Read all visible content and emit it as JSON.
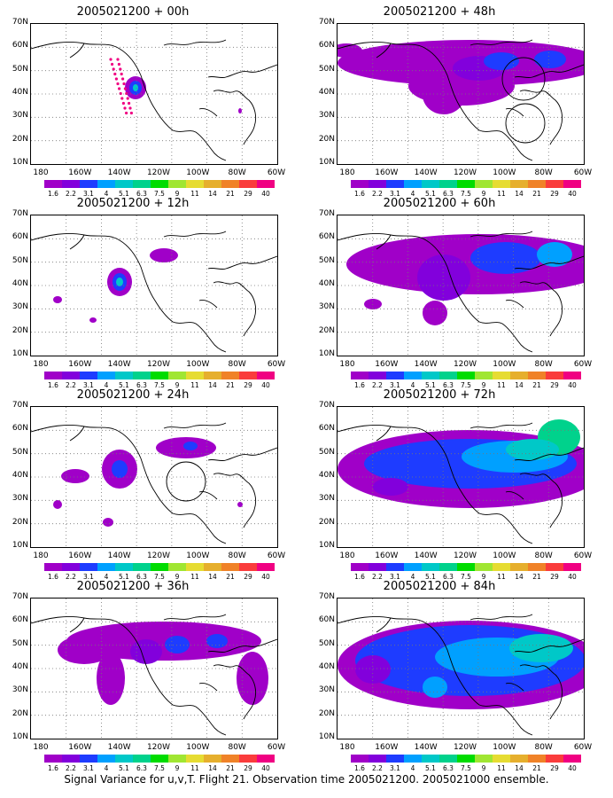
{
  "panels": [
    {
      "title": "2005021200 + 00h",
      "col": 0,
      "row": 0,
      "level": 0
    },
    {
      "title": "2005021200 + 12h",
      "col": 0,
      "row": 1,
      "level": 1
    },
    {
      "title": "2005021200 + 24h",
      "col": 0,
      "row": 2,
      "level": 2
    },
    {
      "title": "2005021200 + 36h",
      "col": 0,
      "row": 3,
      "level": 3
    },
    {
      "title": "2005021200 + 48h",
      "col": 1,
      "row": 0,
      "level": 4
    },
    {
      "title": "2005021200 + 60h",
      "col": 1,
      "row": 1,
      "level": 5
    },
    {
      "title": "2005021200 + 72h",
      "col": 1,
      "row": 2,
      "level": 6
    },
    {
      "title": "2005021200 + 84h",
      "col": 1,
      "row": 3,
      "level": 7
    }
  ],
  "y_axis_labels": [
    "70N",
    "60N",
    "50N",
    "40N",
    "30N",
    "20N",
    "10N"
  ],
  "x_axis_labels": [
    "180",
    "160W",
    "140W",
    "120W",
    "100W",
    "80W",
    "60W"
  ],
  "colorbar": {
    "labels": [
      "1.6",
      "2.2",
      "3.1",
      "4",
      "5.1",
      "6.3",
      "7.5",
      "9",
      "11",
      "14",
      "21",
      "29",
      "40"
    ],
    "colors": [
      "#a000c8",
      "#8200dc",
      "#1e3cff",
      "#00a0ff",
      "#00c8c8",
      "#00d28c",
      "#00dc00",
      "#a0e632",
      "#e6dc32",
      "#e6af2d",
      "#f08228",
      "#fa3c3c",
      "#f00082"
    ]
  },
  "footer": "Signal Variance for u,v,T. Flight 21. Observation time 2005021200. 2005021000 ensemble."
}
